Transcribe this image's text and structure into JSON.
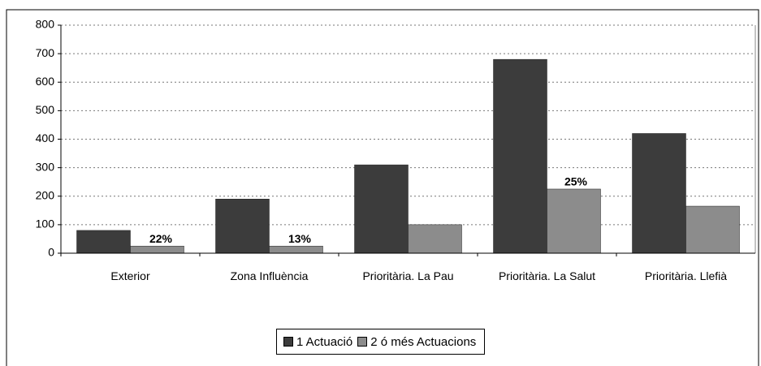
{
  "chart_data": {
    "type": "bar",
    "categories": [
      "Exterior",
      "Zona Influència",
      "Prioritària. La Pau",
      "Prioritària. La Salut",
      "Prioritària. Llefià"
    ],
    "series": [
      {
        "name": "1 Actuació",
        "color": "#3c3c3c",
        "values": [
          80,
          190,
          310,
          680,
          420
        ]
      },
      {
        "name": "2 ó més Actuacions",
        "color": "#8c8c8c",
        "values": [
          25,
          25,
          100,
          225,
          165
        ]
      }
    ],
    "annotations": [
      "22%",
      "13%",
      "25%"
    ],
    "ylim": [
      0,
      800
    ],
    "yticks": [
      0,
      100,
      200,
      300,
      400,
      500,
      600,
      700,
      800
    ],
    "grid": true
  }
}
